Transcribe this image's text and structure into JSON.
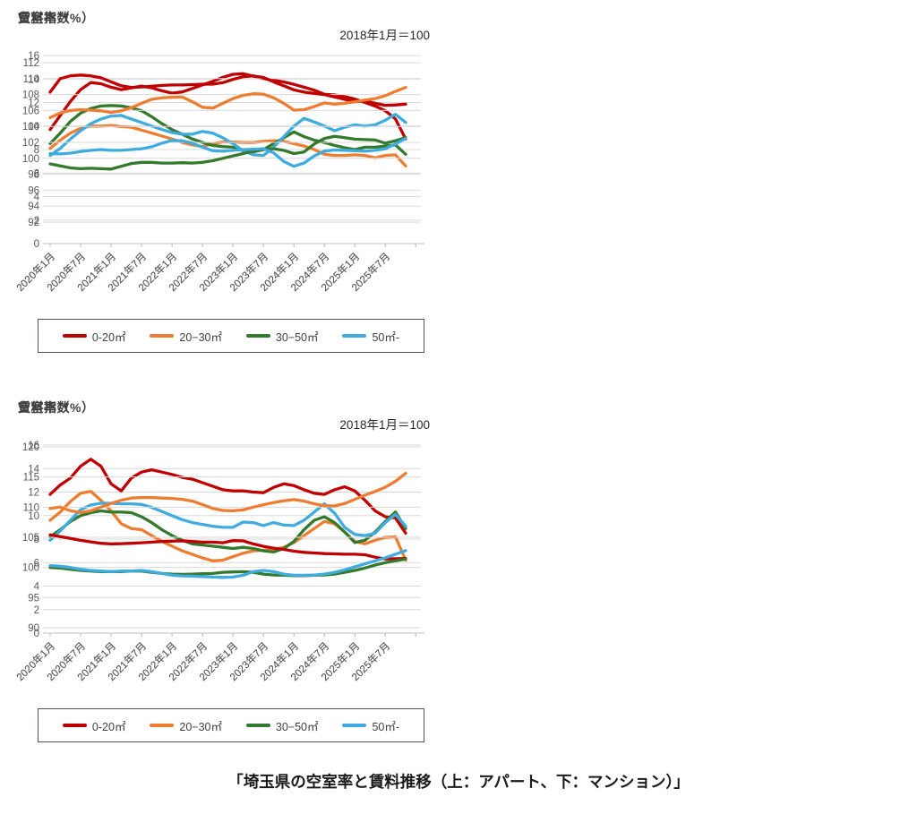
{
  "page": {
    "caption": "「埼玉県の空室率と賃料推移（上：アパート、下：マンション）」"
  },
  "colors": {
    "series_0_20": "#c00000",
    "series_20_30": "#ed7d31",
    "series_30_50": "#337a2d",
    "series_50_plus": "#3fabdf",
    "gridline": "#d9d9d9",
    "axis": "#bfbfbf",
    "tick_text": "#595959"
  },
  "legend": {
    "items": [
      {
        "label": "0-20㎡",
        "color": "#c00000"
      },
      {
        "label": "20−30㎡",
        "color": "#ed7d31"
      },
      {
        "label": "30−50㎡",
        "color": "#337a2d"
      },
      {
        "label": "50㎡-",
        "color": "#3fabdf"
      }
    ]
  },
  "x_axis": {
    "tick_labels": [
      "2020年1月",
      "2020年7月",
      "2021年1月",
      "2021年7月",
      "2022年1月",
      "2022年7月",
      "2023年1月",
      "2023年7月",
      "2024年1月",
      "2024年7月",
      "2025年1月",
      "2025年7月"
    ],
    "tick_interval_months": 6,
    "start": "2020年1月",
    "end": "2025年10月"
  },
  "chart_data": [
    {
      "id": "apartment-vacancy-rate",
      "type": "line",
      "title": "空室率（%）",
      "subtitle": "",
      "ylim": [
        0,
        16
      ],
      "y_step": 2,
      "x_months_step": 2,
      "grid": true,
      "legend_position": "bottom-box",
      "series": [
        {
          "name": "0-20㎡",
          "color": "#c00000",
          "values": [
            9.7,
            10.9,
            12.1,
            13.1,
            13.7,
            13.6,
            13.3,
            13.1,
            13.25,
            13.4,
            13.25,
            13.0,
            12.8,
            12.9,
            13.2,
            13.5,
            13.8,
            14.15,
            14.4,
            14.45,
            14.25,
            14.05,
            13.9,
            13.75,
            13.55,
            13.3,
            13.05,
            12.7,
            12.65,
            12.5,
            12.3,
            12.0,
            11.7,
            11.3,
            10.6,
            8.9
          ]
        },
        {
          "name": "20−30㎡",
          "color": "#ed7d31",
          "values": [
            8.1,
            8.8,
            9.4,
            9.8,
            10.0,
            10.0,
            10.05,
            9.95,
            9.9,
            9.65,
            9.4,
            9.15,
            8.9,
            8.6,
            8.4,
            8.25,
            8.5,
            8.65,
            8.65,
            8.6,
            8.6,
            8.7,
            8.75,
            8.7,
            8.5,
            8.3,
            8.0,
            7.6,
            7.5,
            7.5,
            7.55,
            7.5,
            7.3,
            7.5,
            7.55,
            6.6
          ]
        },
        {
          "name": "30−50㎡",
          "color": "#337a2d",
          "values": [
            8.5,
            9.4,
            10.4,
            11.1,
            11.5,
            11.7,
            11.75,
            11.7,
            11.55,
            11.3,
            10.8,
            10.2,
            9.7,
            9.3,
            8.9,
            8.6,
            8.35,
            8.25,
            8.2,
            7.9,
            7.8,
            8.0,
            8.5,
            9.0,
            9.5,
            9.1,
            8.8,
            8.6,
            8.35,
            8.15,
            8.0,
            8.2,
            8.2,
            8.3,
            8.4,
            7.6
          ]
        },
        {
          "name": "50㎡-",
          "color": "#3fabdf",
          "values": [
            7.5,
            8.1,
            8.9,
            9.6,
            10.2,
            10.6,
            10.85,
            10.9,
            10.6,
            10.3,
            10.0,
            9.7,
            9.45,
            9.3,
            9.3,
            9.55,
            9.4,
            9.0,
            8.5,
            7.9,
            7.55,
            7.5,
            8.2,
            9.1,
            10.0,
            10.65,
            10.35,
            10.0,
            9.6,
            9.9,
            10.1,
            10.0,
            10.1,
            10.5,
            11.0,
            10.3
          ]
        }
      ]
    },
    {
      "id": "apartment-rent-index",
      "type": "line",
      "title": "賃料指数",
      "subtitle": "2018年1月＝100",
      "ylim": [
        92,
        112
      ],
      "y_step": 2,
      "x_months_step": 2,
      "grid": true,
      "legend_position": "bottom-box",
      "series": [
        {
          "name": "0-20㎡",
          "color": "#c00000",
          "values": [
            108.3,
            110.0,
            110.35,
            110.45,
            110.35,
            110.1,
            109.6,
            109.1,
            108.9,
            108.95,
            109.05,
            109.15,
            109.2,
            109.2,
            109.25,
            109.3,
            109.3,
            109.5,
            109.9,
            110.25,
            110.35,
            110.15,
            109.6,
            109.1,
            108.6,
            108.3,
            108.15,
            108.0,
            107.7,
            107.4,
            107.1,
            107.2,
            106.9,
            106.65,
            106.7,
            106.8
          ]
        },
        {
          "name": "20−30㎡",
          "color": "#ed7d31",
          "values": [
            105.1,
            105.7,
            106.0,
            106.1,
            106.05,
            105.95,
            105.75,
            105.95,
            106.35,
            106.9,
            107.4,
            107.6,
            107.65,
            107.7,
            107.1,
            106.4,
            106.3,
            106.9,
            107.5,
            107.9,
            108.1,
            108.05,
            107.6,
            106.9,
            106.05,
            106.1,
            106.5,
            106.95,
            106.8,
            106.9,
            107.1,
            107.3,
            107.5,
            107.85,
            108.4,
            108.9
          ]
        },
        {
          "name": "30−50㎡",
          "color": "#337a2d",
          "values": [
            99.3,
            99.05,
            98.8,
            98.7,
            98.75,
            98.7,
            98.65,
            99.0,
            99.35,
            99.5,
            99.5,
            99.4,
            99.4,
            99.45,
            99.4,
            99.5,
            99.7,
            100.0,
            100.3,
            100.6,
            100.9,
            101.1,
            101.2,
            101.0,
            100.6,
            100.8,
            101.8,
            102.5,
            102.75,
            102.6,
            102.4,
            102.35,
            102.3,
            101.9,
            102.2,
            102.6
          ]
        },
        {
          "name": "50㎡-",
          "color": "#3fabdf",
          "values": [
            100.6,
            100.55,
            100.65,
            100.85,
            101.0,
            101.1,
            101.0,
            101.0,
            101.1,
            101.2,
            101.45,
            101.9,
            102.25,
            102.2,
            101.9,
            101.4,
            100.95,
            100.9,
            101.0,
            101.1,
            101.15,
            101.2,
            100.7,
            99.6,
            99.0,
            99.4,
            100.3,
            100.9,
            101.05,
            101.0,
            100.95,
            100.9,
            101.0,
            101.2,
            101.8,
            102.5
          ]
        }
      ]
    },
    {
      "id": "mansion-vacancy-rate",
      "type": "line",
      "title": "空室率（%）",
      "subtitle": "",
      "ylim": [
        0,
        16
      ],
      "y_step": 2,
      "x_months_step": 2,
      "grid": true,
      "legend_position": "bottom-box",
      "series": [
        {
          "name": "0-20㎡",
          "color": "#c00000",
          "values": [
            11.8,
            12.6,
            13.2,
            14.2,
            14.8,
            14.2,
            12.7,
            12.1,
            13.2,
            13.7,
            13.9,
            13.7,
            13.5,
            13.25,
            13.1,
            12.8,
            12.5,
            12.2,
            12.1,
            12.1,
            12.0,
            11.95,
            12.4,
            12.7,
            12.55,
            12.2,
            11.9,
            11.8,
            12.2,
            12.45,
            12.1,
            11.3,
            10.4,
            9.9,
            9.8,
            8.5
          ]
        },
        {
          "name": "20−30㎡",
          "color": "#ed7d31",
          "values": [
            9.6,
            10.3,
            11.2,
            11.9,
            12.05,
            11.3,
            10.4,
            9.3,
            8.9,
            8.8,
            8.3,
            7.8,
            7.4,
            7.0,
            6.7,
            6.4,
            6.15,
            6.2,
            6.5,
            6.8,
            7.0,
            7.05,
            7.1,
            7.3,
            7.7,
            8.3,
            8.9,
            9.5,
            9.3,
            8.6,
            7.8,
            7.6,
            7.9,
            8.15,
            8.2,
            6.2
          ]
        },
        {
          "name": "30−50㎡",
          "color": "#337a2d",
          "values": [
            8.2,
            8.8,
            9.5,
            10.0,
            10.25,
            10.4,
            10.3,
            10.3,
            10.25,
            9.9,
            9.4,
            8.8,
            8.3,
            7.9,
            7.6,
            7.5,
            7.4,
            7.3,
            7.2,
            7.3,
            7.2,
            7.0,
            6.9,
            7.2,
            7.8,
            8.8,
            9.6,
            9.9,
            9.4,
            8.6,
            7.7,
            7.9,
            8.6,
            9.5,
            10.3,
            8.9
          ]
        },
        {
          "name": "50㎡-",
          "color": "#3fabdf",
          "values": [
            7.9,
            8.7,
            9.6,
            10.5,
            10.9,
            11.05,
            11.05,
            11.0,
            11.0,
            10.95,
            10.7,
            10.35,
            10.0,
            9.65,
            9.4,
            9.25,
            9.1,
            9.0,
            9.0,
            9.45,
            9.4,
            9.15,
            9.4,
            9.2,
            9.15,
            9.6,
            10.3,
            11.0,
            10.2,
            9.0,
            8.4,
            8.3,
            8.5,
            9.4,
            10.1,
            9.1
          ]
        }
      ]
    },
    {
      "id": "mansion-rent-index",
      "type": "line",
      "title": "賃料指数",
      "subtitle": "2018年1月＝100",
      "ylim": [
        90,
        120
      ],
      "y_step": 5,
      "x_months_step": 2,
      "grid": true,
      "legend_position": "bottom-box",
      "series": [
        {
          "name": "0-20㎡",
          "color": "#c00000",
          "values": [
            105.4,
            105.1,
            104.8,
            104.5,
            104.25,
            104.0,
            103.9,
            103.95,
            104.0,
            104.1,
            104.2,
            104.3,
            104.35,
            104.4,
            104.3,
            104.2,
            104.2,
            104.1,
            104.45,
            104.4,
            103.9,
            103.5,
            103.2,
            103.0,
            102.7,
            102.5,
            102.4,
            102.3,
            102.25,
            102.2,
            102.2,
            102.1,
            101.7,
            101.4,
            101.45,
            101.5
          ]
        },
        {
          "name": "20−30㎡",
          "color": "#ed7d31",
          "values": [
            109.8,
            110.0,
            109.4,
            109.1,
            109.4,
            110.0,
            110.6,
            111.15,
            111.5,
            111.6,
            111.6,
            111.5,
            111.45,
            111.3,
            111.0,
            110.4,
            109.8,
            109.45,
            109.4,
            109.55,
            110.0,
            110.4,
            110.75,
            111.05,
            111.25,
            111.0,
            110.55,
            110.25,
            110.2,
            110.6,
            111.3,
            112.0,
            112.6,
            113.3,
            114.3,
            115.6
          ]
        },
        {
          "name": "30−50㎡",
          "color": "#337a2d",
          "values": [
            100.0,
            99.9,
            99.7,
            99.5,
            99.4,
            99.3,
            99.3,
            99.3,
            99.4,
            99.4,
            99.2,
            99.0,
            98.9,
            98.85,
            98.9,
            98.95,
            99.0,
            99.2,
            99.25,
            99.3,
            99.2,
            98.9,
            98.75,
            98.7,
            98.65,
            98.65,
            98.7,
            98.75,
            98.9,
            99.2,
            99.5,
            99.9,
            100.4,
            100.8,
            101.1,
            101.4
          ]
        },
        {
          "name": "50㎡-",
          "color": "#3fabdf",
          "values": [
            100.3,
            100.2,
            100.0,
            99.7,
            99.5,
            99.4,
            99.3,
            99.4,
            99.4,
            99.5,
            99.3,
            99.0,
            98.7,
            98.6,
            98.55,
            98.5,
            98.4,
            98.35,
            98.4,
            98.7,
            99.3,
            99.5,
            99.3,
            98.9,
            98.7,
            98.7,
            98.75,
            98.9,
            99.2,
            99.6,
            100.1,
            100.6,
            101.1,
            101.6,
            102.2,
            102.8
          ]
        }
      ]
    }
  ]
}
